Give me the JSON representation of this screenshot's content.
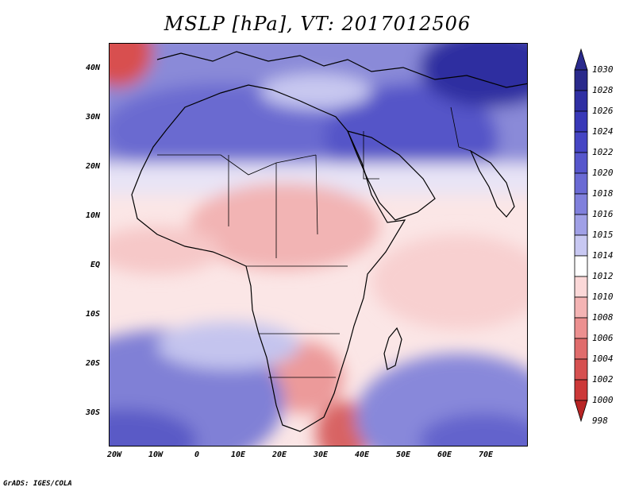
{
  "title": "MSLP [hPa], VT: 2017012506",
  "credit": "GrADS: IGES/COLA",
  "lat_labels": [
    "40N",
    "30N",
    "20N",
    "10N",
    "EQ",
    "10S",
    "20S",
    "30S"
  ],
  "lon_labels": [
    "20W",
    "10W",
    "0",
    "10E",
    "20E",
    "30E",
    "40E",
    "50E",
    "60E",
    "70E"
  ],
  "colorbar": {
    "labels": [
      "1030",
      "1028",
      "1026",
      "1024",
      "1022",
      "1020",
      "1018",
      "1016",
      "1015",
      "1014",
      "1012",
      "1010",
      "1008",
      "1006",
      "1004",
      "1002",
      "1000",
      "998"
    ],
    "colors": [
      "#2a2a8c",
      "#2f2fa3",
      "#3838b8",
      "#4545c4",
      "#5656cc",
      "#6a6ad4",
      "#8080dc",
      "#a0a0e6",
      "#c8c8f2",
      "#ffffff",
      "#fbd8d8",
      "#f4b4b4",
      "#ec9090",
      "#e06c6c",
      "#d65050",
      "#cc3838",
      "#b82424"
    ]
  },
  "chart_data": {
    "type": "heatmap",
    "title": "MSLP [hPa], VT: 2017012506",
    "variable": "MSLP",
    "units": "hPa",
    "valid_time": "2017012506",
    "lon_range": [
      -22,
      80
    ],
    "lat_range": [
      -36,
      45
    ],
    "levels": [
      998,
      1000,
      1002,
      1004,
      1006,
      1008,
      1010,
      1012,
      1014,
      1015,
      1016,
      1018,
      1020,
      1022,
      1024,
      1026,
      1028,
      1030
    ],
    "field_features": [
      {
        "region": "northwest corner (off Iberia)",
        "value": 1006
      },
      {
        "region": "Mediterranean",
        "value": 1016
      },
      {
        "region": "Sahara / north Africa",
        "value": 1022
      },
      {
        "region": "Arabia / Middle East",
        "value": 1026
      },
      {
        "region": "Central Asia northeast",
        "value": 1030
      },
      {
        "region": "Sahel / central Africa",
        "value": 1011
      },
      {
        "region": "equatorial Atlantic",
        "value": 1013
      },
      {
        "region": "southern Africa interior",
        "value": 1009
      },
      {
        "region": "Mozambique Channel / SE Africa",
        "value": 1007
      },
      {
        "region": "south Atlantic",
        "value": 1020
      },
      {
        "region": "south Indian Ocean",
        "value": 1020
      }
    ]
  }
}
